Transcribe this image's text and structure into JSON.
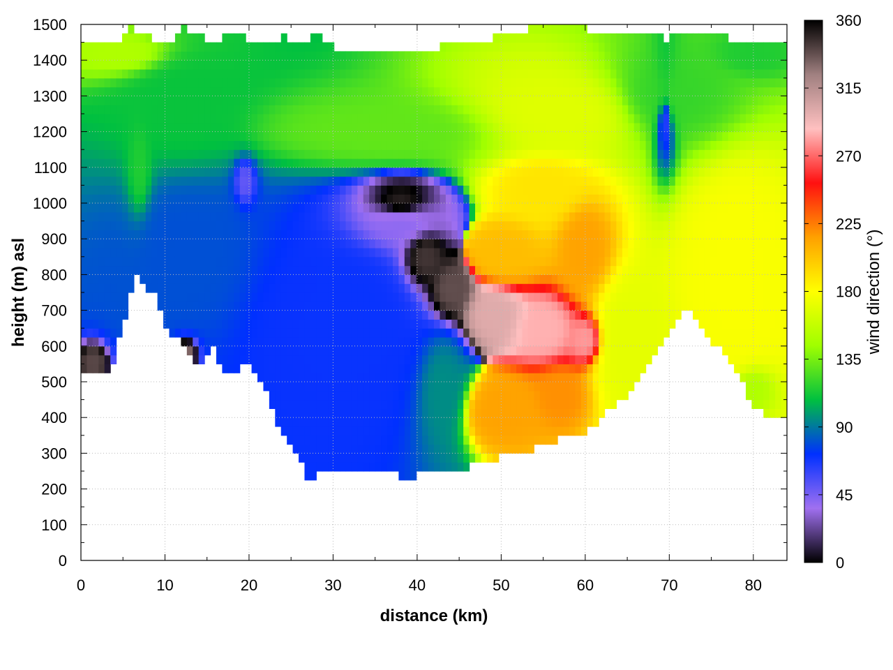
{
  "chart_data": {
    "type": "heatmap",
    "title": "",
    "xlabel": "distance (km)",
    "ylabel": "height (m) asl",
    "colorbar_label": "wind direction (°)",
    "xlim": [
      0,
      84
    ],
    "ylim": [
      0,
      1500
    ],
    "x_ticks": [
      0,
      10,
      20,
      30,
      40,
      50,
      60,
      70,
      80
    ],
    "y_ticks": [
      0,
      100,
      200,
      300,
      400,
      500,
      600,
      700,
      800,
      900,
      1000,
      1100,
      1200,
      1300,
      1400,
      1500
    ],
    "colorbar_ticks": [
      0,
      45,
      90,
      135,
      180,
      225,
      270,
      315,
      360
    ],
    "colorbar_range": [
      0,
      360
    ],
    "grid": true,
    "colormap": [
      "#000000",
      "#a070f0",
      "#0030ff",
      "#00c040",
      "#a0ff00",
      "#ffff00",
      "#ffa000",
      "#ff1010",
      "#ffc0c0",
      "#a08080",
      "#000000"
    ],
    "terrain_bottom": [
      [
        0,
        520
      ],
      [
        2.5,
        515
      ],
      [
        4,
        560
      ],
      [
        6.5,
        815
      ],
      [
        9,
        730
      ],
      [
        10.5,
        640
      ],
      [
        12.5,
        600
      ],
      [
        14,
        525
      ],
      [
        15.5,
        600
      ],
      [
        17.5,
        510
      ],
      [
        19.5,
        555
      ],
      [
        21.5,
        505
      ],
      [
        23,
        400
      ],
      [
        25,
        330
      ],
      [
        27,
        235
      ],
      [
        30,
        245
      ],
      [
        33,
        250
      ],
      [
        36,
        238
      ],
      [
        40,
        237
      ],
      [
        44,
        245
      ],
      [
        48,
        275
      ],
      [
        52,
        300
      ],
      [
        56,
        330
      ],
      [
        58,
        345
      ],
      [
        60,
        360
      ],
      [
        63,
        420
      ],
      [
        65,
        460
      ],
      [
        67,
        520
      ],
      [
        70,
        640
      ],
      [
        72,
        720
      ],
      [
        74,
        640
      ],
      [
        77,
        560
      ],
      [
        80,
        440
      ],
      [
        82,
        395
      ],
      [
        84,
        410
      ]
    ],
    "data_top": [
      [
        0,
        1440
      ],
      [
        2,
        1460
      ],
      [
        4,
        1450
      ],
      [
        6,
        1490
      ],
      [
        8,
        1470
      ],
      [
        10,
        1440
      ],
      [
        12,
        1490
      ],
      [
        14,
        1470
      ],
      [
        16,
        1450
      ],
      [
        18,
        1480
      ],
      [
        20,
        1460
      ],
      [
        22,
        1440
      ],
      [
        24,
        1470
      ],
      [
        26,
        1450
      ],
      [
        28,
        1470
      ],
      [
        30,
        1440
      ],
      [
        33,
        1420
      ],
      [
        36,
        1430
      ],
      [
        40,
        1430
      ],
      [
        44,
        1440
      ],
      [
        48,
        1460
      ],
      [
        52,
        1470
      ],
      [
        54,
        1500
      ],
      [
        58,
        1500
      ],
      [
        62,
        1480
      ],
      [
        66,
        1470
      ],
      [
        70,
        1460
      ],
      [
        72,
        1490
      ],
      [
        74,
        1470
      ],
      [
        78,
        1460
      ],
      [
        82,
        1460
      ],
      [
        84,
        1460
      ]
    ],
    "features": [
      {
        "x": 12,
        "y": 1280,
        "rx": 11,
        "ry": 260,
        "value": 110
      },
      {
        "x": 70,
        "y": 1300,
        "rx": 11,
        "ry": 190,
        "value": 120
      },
      {
        "x": 5,
        "y": 1420,
        "rx": 9,
        "ry": 90,
        "value": 150
      },
      {
        "x": 80,
        "y": 1420,
        "rx": 6,
        "ry": 80,
        "value": 115
      },
      {
        "x": 13,
        "y": 850,
        "rx": 12,
        "ry": 330,
        "value": 80
      },
      {
        "x": 30,
        "y": 650,
        "rx": 17,
        "ry": 430,
        "value": 70
      },
      {
        "x": 38,
        "y": 950,
        "rx": 9,
        "ry": 130,
        "value": 40
      },
      {
        "x": 19.5,
        "y": 1060,
        "rx": 1.8,
        "ry": 90,
        "value": 50
      },
      {
        "x": 43,
        "y": 480,
        "rx": 4,
        "ry": 220,
        "value": 95
      },
      {
        "x": 38,
        "y": 1000,
        "rx": 6,
        "ry": 100,
        "value": 350
      },
      {
        "x": 41,
        "y": 850,
        "rx": 4,
        "ry": 130,
        "value": 345
      },
      {
        "x": 44,
        "y": 760,
        "rx": 4,
        "ry": 120,
        "value": 338
      },
      {
        "x": 49,
        "y": 690,
        "rx": 5,
        "ry": 120,
        "value": 300
      },
      {
        "x": 55,
        "y": 650,
        "rx": 5,
        "ry": 110,
        "value": 285
      },
      {
        "x": 60,
        "y": 620,
        "rx": 3,
        "ry": 90,
        "value": 280
      },
      {
        "x": 50,
        "y": 860,
        "rx": 6,
        "ry": 130,
        "value": 205
      },
      {
        "x": 60,
        "y": 880,
        "rx": 4,
        "ry": 180,
        "value": 215
      },
      {
        "x": 50,
        "y": 420,
        "rx": 6,
        "ry": 130,
        "value": 215
      },
      {
        "x": 57,
        "y": 460,
        "rx": 4,
        "ry": 100,
        "value": 220
      },
      {
        "x": 55,
        "y": 1050,
        "rx": 9,
        "ry": 130,
        "value": 190
      },
      {
        "x": 78,
        "y": 800,
        "rx": 8,
        "ry": 400,
        "value": 178
      },
      {
        "x": 65,
        "y": 620,
        "rx": 6,
        "ry": 230,
        "value": 170
      },
      {
        "x": 80,
        "y": 480,
        "rx": 3,
        "ry": 80,
        "value": 150
      },
      {
        "x": 1.5,
        "y": 555,
        "rx": 1.8,
        "ry": 55,
        "value": 340
      },
      {
        "x": 12.5,
        "y": 580,
        "rx": 1.8,
        "ry": 60,
        "value": 330
      },
      {
        "x": 69.5,
        "y": 1250,
        "rx": 2,
        "ry": 190,
        "value": 60
      },
      {
        "x": 7,
        "y": 1100,
        "rx": 2,
        "ry": 200,
        "value": 115
      },
      {
        "x": 36,
        "y": 1200,
        "rx": 20,
        "ry": 130,
        "value": 130
      },
      {
        "x": 57,
        "y": 1250,
        "rx": 15,
        "ry": 180,
        "value": 168
      }
    ],
    "default_value": 100
  }
}
